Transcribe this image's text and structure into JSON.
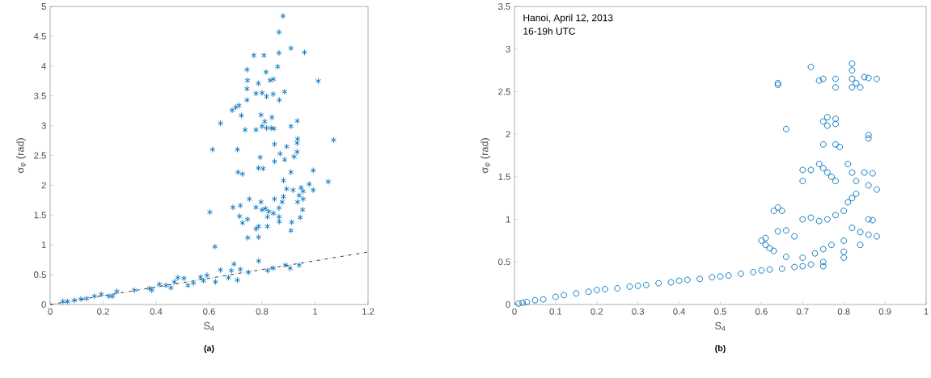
{
  "chart_data": [
    {
      "type": "scatter",
      "title": "(a)",
      "xlabel": "S$_{4}$",
      "ylabel": "σ$_{φ}$ (rad)",
      "xlim": [
        0,
        1.2
      ],
      "ylim": [
        0,
        5
      ],
      "xticks": [
        0,
        0.2,
        0.4,
        0.6,
        0.8,
        1,
        1.2
      ],
      "yticks": [
        0,
        0.5,
        1,
        1.5,
        2,
        2.5,
        3,
        3.5,
        4,
        4.5,
        5
      ],
      "marker": "cross",
      "series": [
        {
          "color": "#0072bd",
          "x": [
            0.879,
            0.864,
            0.909,
            0.96,
            0.769,
            0.807,
            0.864,
            0.859,
            0.743,
            0.815,
            0.745,
            0.83,
            0.843,
            1.012,
            0.786,
            0.743,
            0.777,
            0.8,
            0.817,
            0.842,
            0.885,
            0.743,
            0.865,
            0.687,
            0.701,
            0.713,
            0.643,
            0.722,
            0.796,
            0.837,
            0.81,
            0.933,
            0.736,
            0.777,
            0.8,
            0.817,
            0.834,
            0.845,
            0.909,
            0.934,
            0.932,
            0.847,
            0.893,
            0.613,
            0.707,
            0.868,
            0.793,
            0.885,
            0.921,
            0.932,
            0.847,
            0.786,
            0.804,
            0.709,
            0.726,
            0.909,
            0.993,
            0.881,
            0.978,
            0.947,
            0.893,
            0.917,
            0.993,
            0.955,
            0.94,
            0.955,
            0.881,
            0.847,
            0.752,
            0.876,
            0.796,
            0.934,
            0.864,
            0.718,
            0.69,
            0.777,
            0.8,
            0.813,
            0.825,
            0.843,
            0.953,
            0.603,
            0.715,
            0.82,
            0.864,
            0.944,
            0.745,
            0.726,
            0.865,
            0.912,
            0.787,
            0.777,
            0.82,
            0.909,
            0.746,
            0.787,
            0.622,
            1.07,
            1.05,
            0.787,
            0.694,
            0.643,
            0.684,
            0.718,
            0.749,
            0.821,
            0.842,
            0.888,
            0.906,
            0.94,
            0.592,
            0.568,
            0.579,
            0.624,
            0.673,
            0.707,
            0.505,
            0.482,
            0.469,
            0.52,
            0.541,
            0.456,
            0.412,
            0.384,
            0.375,
            0.437,
            0.318,
            0.252,
            0.235,
            0.222,
            0.193,
            0.167,
            0.138,
            0.116,
            0.091,
            0.065,
            0.048
          ],
          "values": [
            4.84,
            4.57,
            4.3,
            4.23,
            4.18,
            4.18,
            4.22,
            3.99,
            3.94,
            3.9,
            3.76,
            3.76,
            3.78,
            3.75,
            3.71,
            3.62,
            3.54,
            3.55,
            3.49,
            3.53,
            3.57,
            3.43,
            3.43,
            3.26,
            3.31,
            3.34,
            3.04,
            3.17,
            3.18,
            3.14,
            3.07,
            3.08,
            2.93,
            2.93,
            2.99,
            2.96,
            2.96,
            2.95,
            2.99,
            2.78,
            2.71,
            2.69,
            2.65,
            2.6,
            2.6,
            2.53,
            2.47,
            2.43,
            2.48,
            2.56,
            2.4,
            2.29,
            2.28,
            2.22,
            2.19,
            2.22,
            2.25,
            2.08,
            2.02,
            1.96,
            1.94,
            1.92,
            1.92,
            1.9,
            1.83,
            1.77,
            1.81,
            1.77,
            1.77,
            1.72,
            1.72,
            1.72,
            1.62,
            1.66,
            1.63,
            1.63,
            1.59,
            1.61,
            1.56,
            1.53,
            1.59,
            1.55,
            1.48,
            1.47,
            1.47,
            1.46,
            1.43,
            1.37,
            1.39,
            1.38,
            1.31,
            1.27,
            1.31,
            1.24,
            1.12,
            1.13,
            0.97,
            2.76,
            2.06,
            0.73,
            0.68,
            0.58,
            0.57,
            0.59,
            0.54,
            0.57,
            0.61,
            0.66,
            0.61,
            0.66,
            0.49,
            0.46,
            0.4,
            0.38,
            0.45,
            0.41,
            0.44,
            0.45,
            0.38,
            0.32,
            0.36,
            0.28,
            0.34,
            0.24,
            0.27,
            0.32,
            0.24,
            0.22,
            0.14,
            0.14,
            0.17,
            0.14,
            0.1,
            0.09,
            0.07,
            0.05,
            0.05
          ]
        },
        {
          "type": "line",
          "color": "#000000",
          "line_style": "dashdot",
          "marker": "none",
          "x": [
            0,
            1.2
          ],
          "values": [
            0,
            0.88
          ]
        }
      ]
    },
    {
      "type": "scatter",
      "title": "(b)",
      "xlabel": "S$_{4}$",
      "ylabel": "σ$_{φ}$ (rad)",
      "annotations": [
        "Hanoi, April 12, 2013",
        "16-19h UTC"
      ],
      "xlim": [
        0,
        1
      ],
      "ylim": [
        0,
        3.5
      ],
      "xticks": [
        0,
        0.1,
        0.2,
        0.3,
        0.4,
        0.5,
        0.6,
        0.7,
        0.8,
        0.9,
        1
      ],
      "yticks": [
        0,
        0.5,
        1,
        1.5,
        2,
        2.5,
        3,
        3.5
      ],
      "marker": "circle",
      "series": [
        {
          "color": "#0072bd",
          "x": [
            0.01,
            0.02,
            0.03,
            0.05,
            0.07,
            0.1,
            0.12,
            0.15,
            0.18,
            0.2,
            0.22,
            0.25,
            0.28,
            0.3,
            0.32,
            0.35,
            0.38,
            0.4,
            0.42,
            0.45,
            0.48,
            0.5,
            0.52,
            0.55,
            0.58,
            0.6,
            0.62,
            0.65,
            0.68,
            0.7,
            0.72,
            0.75,
            0.75,
            0.8,
            0.64,
            0.64,
            0.66,
            0.72,
            0.74,
            0.75,
            0.78,
            0.78,
            0.82,
            0.82,
            0.82,
            0.83,
            0.82,
            0.84,
            0.85,
            0.86,
            0.88,
            0.75,
            0.76,
            0.76,
            0.78,
            0.78,
            0.75,
            0.78,
            0.79,
            0.86,
            0.86,
            0.7,
            0.7,
            0.72,
            0.74,
            0.75,
            0.76,
            0.77,
            0.78,
            0.81,
            0.82,
            0.85,
            0.87,
            0.86,
            0.88,
            0.83,
            0.64,
            0.63,
            0.65,
            0.64,
            0.66,
            0.6,
            0.61,
            0.61,
            0.62,
            0.63,
            0.7,
            0.72,
            0.74,
            0.76,
            0.78,
            0.8,
            0.81,
            0.82,
            0.83,
            0.86,
            0.87,
            0.82,
            0.84,
            0.86,
            0.88,
            0.8,
            0.77,
            0.75,
            0.73,
            0.8,
            0.84,
            0.7,
            0.68,
            0.66
          ],
          "values": [
            0.01,
            0.02,
            0.03,
            0.05,
            0.06,
            0.09,
            0.11,
            0.13,
            0.15,
            0.17,
            0.18,
            0.19,
            0.21,
            0.22,
            0.23,
            0.25,
            0.26,
            0.28,
            0.29,
            0.3,
            0.32,
            0.33,
            0.34,
            0.36,
            0.38,
            0.4,
            0.41,
            0.42,
            0.44,
            0.45,
            0.47,
            0.5,
            0.45,
            0.55,
            2.6,
            2.58,
            2.06,
            2.79,
            2.63,
            2.65,
            2.65,
            2.55,
            2.83,
            2.75,
            2.65,
            2.6,
            2.55,
            2.55,
            2.67,
            2.66,
            2.65,
            2.15,
            2.2,
            2.1,
            2.18,
            2.12,
            1.88,
            1.88,
            1.85,
            1.99,
            1.95,
            1.58,
            1.45,
            1.58,
            1.65,
            1.6,
            1.55,
            1.5,
            1.45,
            1.65,
            1.55,
            1.55,
            1.54,
            1.4,
            1.35,
            1.45,
            1.14,
            1.1,
            1.1,
            0.86,
            0.87,
            0.75,
            0.78,
            0.7,
            0.66,
            0.63,
            1.0,
            1.02,
            0.98,
            1.0,
            1.05,
            1.1,
            1.2,
            1.25,
            1.3,
            1.0,
            0.99,
            0.9,
            0.85,
            0.82,
            0.8,
            0.75,
            0.7,
            0.65,
            0.6,
            0.62,
            0.7,
            0.55,
            0.8,
            0.56
          ]
        }
      ]
    }
  ]
}
